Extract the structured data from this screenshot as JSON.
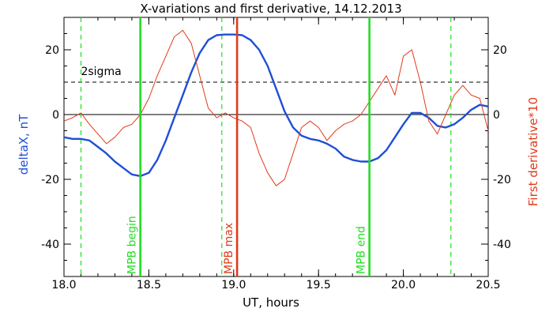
{
  "chart_data": {
    "type": "line",
    "title": "X-variations and first derivative, 14.12.2013",
    "xlabel": "UT, hours",
    "ylabel_left": "deltaX, nT",
    "ylabel_right": "First derivative*10",
    "xlim": [
      18.0,
      20.5
    ],
    "ylim": [
      -50,
      30
    ],
    "x_ticks": [
      "18.0",
      "18.5",
      "19.0",
      "19.5",
      "20.0",
      "20.5"
    ],
    "x_tick_values": [
      18.0,
      18.5,
      19.0,
      19.5,
      20.0,
      20.5
    ],
    "y_ticks": [
      "20",
      "0",
      "-20",
      "-40"
    ],
    "y_tick_values": [
      20,
      0,
      -20,
      -40
    ],
    "grid": false,
    "colors": {
      "deltaX": "#1f4fd6",
      "derivative": "#e03a1a",
      "mpb_border": "#22dd22",
      "mpb_max": "#e03a1a",
      "threshold": "#000000"
    },
    "series": [
      {
        "name": "deltaX",
        "axis": "left",
        "x": [
          18.0,
          18.05,
          18.1,
          18.15,
          18.2,
          18.25,
          18.3,
          18.35,
          18.4,
          18.45,
          18.5,
          18.55,
          18.6,
          18.65,
          18.7,
          18.75,
          18.8,
          18.85,
          18.9,
          18.95,
          19.0,
          19.05,
          19.1,
          19.15,
          19.2,
          19.25,
          19.3,
          19.35,
          19.4,
          19.45,
          19.5,
          19.55,
          19.6,
          19.65,
          19.7,
          19.75,
          19.8,
          19.85,
          19.9,
          19.95,
          20.0,
          20.05,
          20.1,
          20.15,
          20.2,
          20.25,
          20.3,
          20.35,
          20.4,
          20.45,
          20.5
        ],
        "values": [
          -7,
          -7.5,
          -7.5,
          -8,
          -10,
          -12,
          -14.5,
          -16.5,
          -18.5,
          -19,
          -18,
          -14,
          -8,
          -1,
          6,
          13,
          19,
          23,
          24.5,
          24.7,
          24.7,
          24.5,
          23,
          20,
          15,
          8,
          1,
          -4,
          -6.5,
          -7.5,
          -8,
          -9,
          -10.5,
          -13,
          -14,
          -14.5,
          -14.5,
          -13.5,
          -11,
          -7,
          -3,
          0.5,
          0.5,
          -1,
          -3.5,
          -4,
          -3,
          -1,
          1.5,
          3,
          2.5
        ]
      },
      {
        "name": "First derivative*10",
        "axis": "right",
        "x": [
          18.0,
          18.05,
          18.1,
          18.15,
          18.2,
          18.25,
          18.3,
          18.35,
          18.4,
          18.45,
          18.5,
          18.55,
          18.6,
          18.65,
          18.7,
          18.75,
          18.8,
          18.85,
          18.9,
          18.95,
          19.0,
          19.05,
          19.1,
          19.15,
          19.2,
          19.25,
          19.3,
          19.35,
          19.4,
          19.45,
          19.5,
          19.55,
          19.6,
          19.65,
          19.7,
          19.75,
          19.8,
          19.85,
          19.9,
          19.95,
          20.0,
          20.05,
          20.1,
          20.15,
          20.2,
          20.25,
          20.3,
          20.35,
          20.4,
          20.45,
          20.5
        ],
        "values": [
          -2,
          -1,
          0.5,
          -3,
          -6,
          -9,
          -7,
          -4,
          -3,
          0,
          5,
          12,
          18,
          24,
          26,
          22,
          12,
          2,
          -1,
          0.5,
          -1,
          -2,
          -4,
          -12,
          -18,
          -22,
          -20,
          -12,
          -4,
          -2,
          -4,
          -8,
          -5,
          -3,
          -2,
          0,
          4,
          8,
          12,
          6,
          18,
          20,
          10,
          -2,
          -6,
          0,
          6,
          9,
          6,
          5,
          -5
        ]
      }
    ],
    "threshold": {
      "label": "2sigma",
      "value": 10
    },
    "zero_line": 0,
    "markers": [
      {
        "label": "MPB begin",
        "x": 18.45,
        "color": "#22dd22",
        "style": "solid"
      },
      {
        "label": "MPB max",
        "x": 19.02,
        "color": "#e03a1a",
        "style": "solid"
      },
      {
        "label": "MPB end",
        "x": 19.8,
        "color": "#22dd22",
        "style": "solid"
      }
    ],
    "dashed_markers": [
      {
        "x": 18.1,
        "color": "#22dd22"
      },
      {
        "x": 18.93,
        "color": "#22dd22"
      },
      {
        "x": 20.28,
        "color": "#22dd22"
      }
    ]
  }
}
